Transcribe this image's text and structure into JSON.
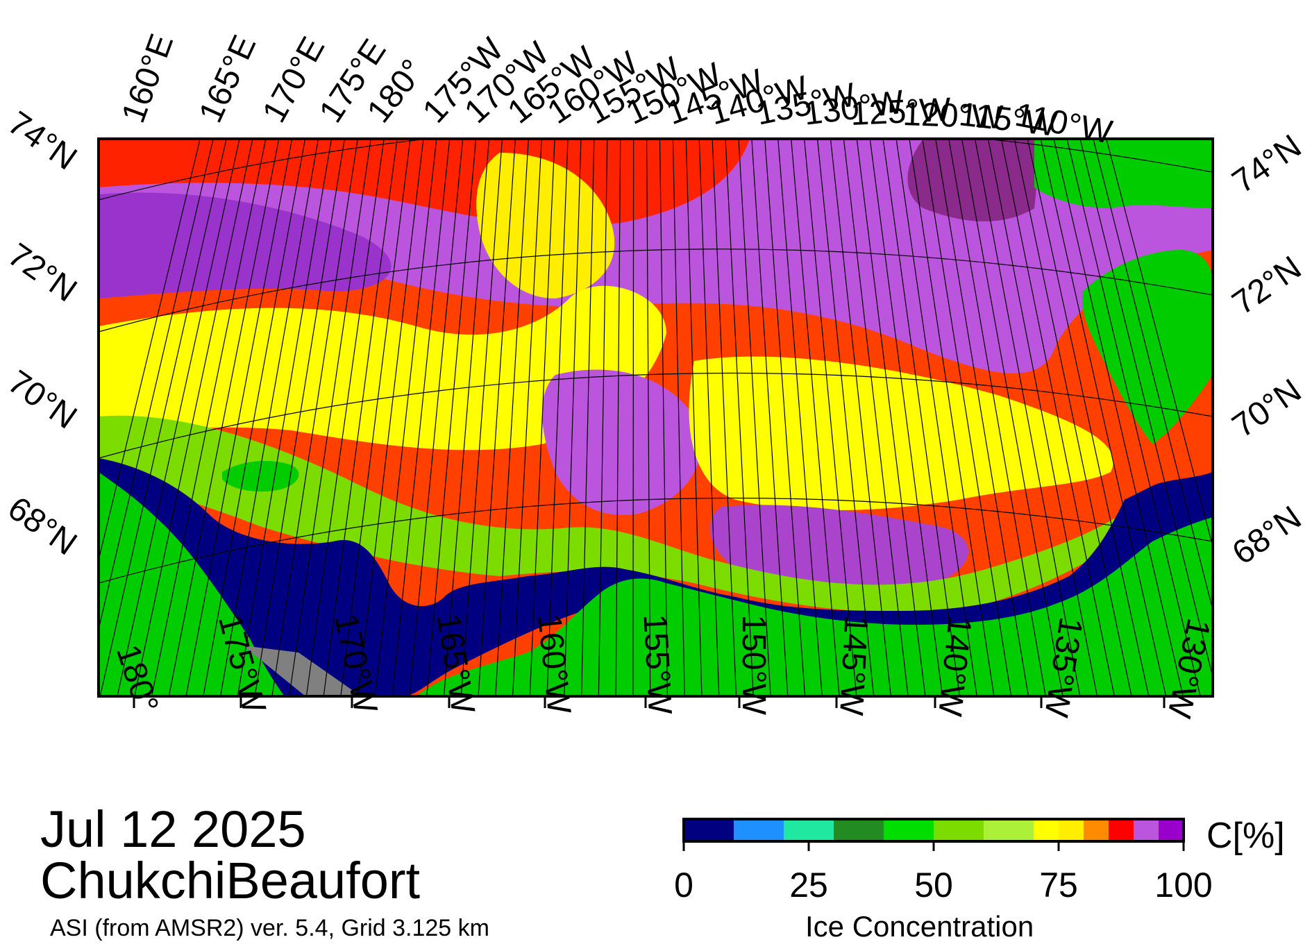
{
  "title": {
    "date": "Jul 12 2025",
    "region": "ChukchiBeaufort",
    "source": "ASI (from AMSR2) ver. 5.4,  Grid 3.125 km"
  },
  "map": {
    "projection": "polar stereographic",
    "top_longitude_labels": [
      "160°E",
      "165°E",
      "170°E",
      "175°E",
      "180°",
      "175°W",
      "170°W",
      "165°W",
      "160°W",
      "155°W",
      "150°W",
      "145°W",
      "140°W",
      "135°W",
      "130°W",
      "125°W",
      "120°W",
      "115°W",
      "110°W"
    ],
    "bottom_longitude_labels": [
      "180°",
      "175°W",
      "170°W",
      "165°W",
      "160°W",
      "155°W",
      "150°W",
      "145°W",
      "140°W",
      "135°W",
      "130°W"
    ],
    "left_latitude_labels": [
      "74°N",
      "72°N",
      "70°N",
      "68°N"
    ],
    "right_latitude_labels": [
      "74°N",
      "72°N",
      "70°N",
      "68°N"
    ],
    "colors": {
      "land": "#00cc00",
      "open_water": "#000080",
      "missing": "#808080",
      "grid": "#000000"
    }
  },
  "colorbar": {
    "title": "Ice Concentration",
    "unit": "C[%]",
    "ticks": [
      "0",
      "25",
      "50",
      "75",
      "100"
    ],
    "tick_values": [
      0,
      25,
      50,
      75,
      100
    ],
    "range": [
      0,
      100
    ],
    "bins": [
      {
        "from": 0,
        "to": 10,
        "color": "#000080"
      },
      {
        "from": 10,
        "to": 20,
        "color": "#1e90ff"
      },
      {
        "from": 20,
        "to": 30,
        "color": "#20e8a0"
      },
      {
        "from": 30,
        "to": 40,
        "color": "#228b22"
      },
      {
        "from": 40,
        "to": 50,
        "color": "#00dd00"
      },
      {
        "from": 50,
        "to": 60,
        "color": "#7cdc00"
      },
      {
        "from": 60,
        "to": 70,
        "color": "#adf03a"
      },
      {
        "from": 70,
        "to": 75,
        "color": "#ffff00"
      },
      {
        "from": 75,
        "to": 80,
        "color": "#ffee00"
      },
      {
        "from": 80,
        "to": 85,
        "color": "#ff8c00"
      },
      {
        "from": 85,
        "to": 90,
        "color": "#ff0000"
      },
      {
        "from": 90,
        "to": 95,
        "color": "#bb55dd"
      },
      {
        "from": 95,
        "to": 100,
        "color": "#9900cc"
      }
    ]
  }
}
